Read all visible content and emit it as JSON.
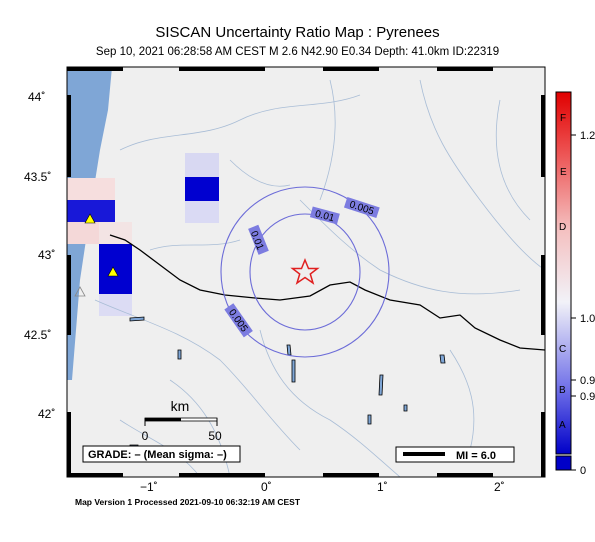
{
  "header": {
    "title": "SISCAN Uncertainty Ratio Map : Pyrenees",
    "subtitle": "Sep 10, 2021 06:28:58 AM CEST   M 2.6   N42.90 E0.34   Depth: 41.0km   ID:22319"
  },
  "map": {
    "lat_labels": [
      "44˚",
      "43.5˚",
      "43˚",
      "42.5˚",
      "42˚"
    ],
    "lon_labels": [
      "−1˚",
      "0˚",
      "1˚",
      "2˚"
    ],
    "contour_labels": [
      "0.005",
      "0.01",
      "0.01",
      "0.005"
    ],
    "scale": {
      "unit": "km",
      "start": "0",
      "end": "50"
    },
    "grade_text": "GRADE: – (Mean sigma: –)",
    "mi_text": "MI = 6.0",
    "colors": {
      "land": "#efefef",
      "water": "#7fa6d6",
      "epicenter": "#e02020",
      "contour": "#6c6cd8",
      "station": "#ffff00",
      "high_cell": "#0000cc"
    }
  },
  "colorbar": {
    "letters": [
      "F",
      "E",
      "D",
      "C",
      "B",
      "A"
    ],
    "values": [
      "1.2",
      "1.0",
      "0.9",
      "0.9",
      "0"
    ]
  },
  "footer": "Map Version 1 Processed 2021-09-10 06:32:19 AM CEST"
}
